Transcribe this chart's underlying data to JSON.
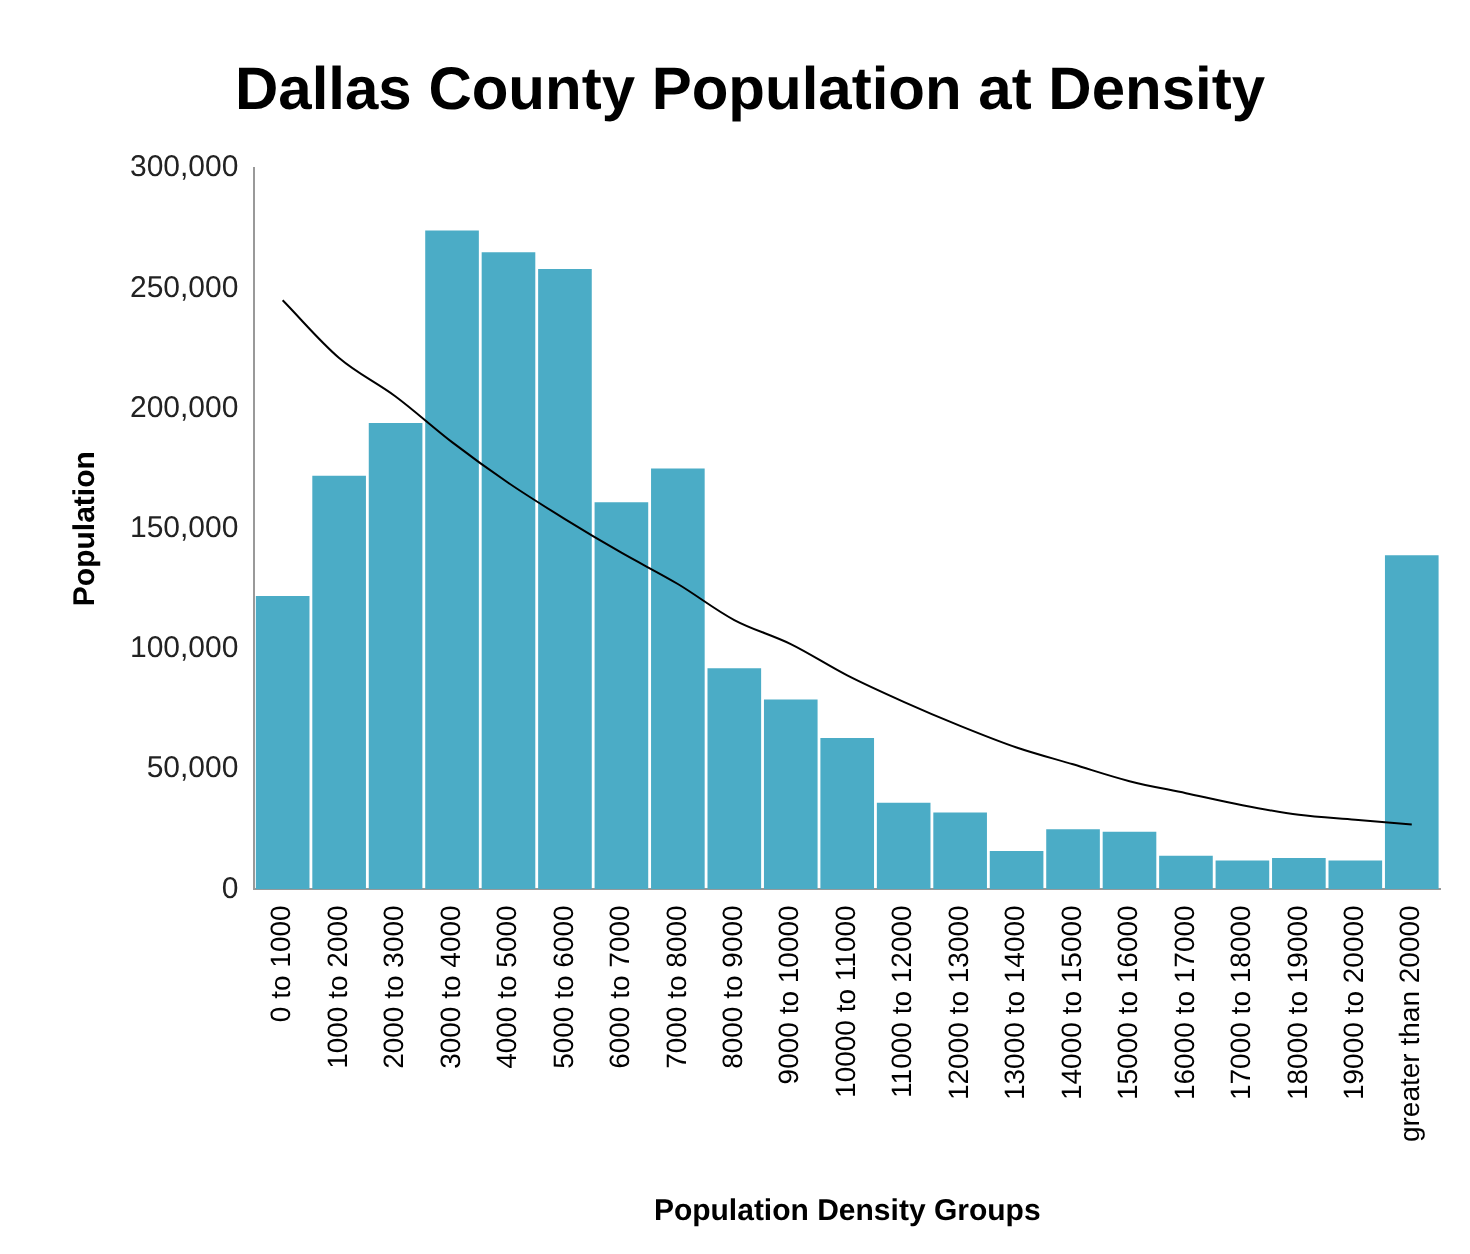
{
  "chart_data": {
    "type": "bar",
    "title": "Dallas County Population at Density",
    "xlabel": "Population Density Groups",
    "ylabel": "Population",
    "categories": [
      "0 to 1000",
      "1000 to 2000",
      "2000 to 3000",
      "3000 to 4000",
      "4000 to 5000",
      "5000 to 6000",
      "6000 to 7000",
      "7000 to 8000",
      "8000 to 9000",
      "9000 to 10000",
      "10000 to 11000",
      "11000 to 12000",
      "12000 to 13000",
      "13000 to 14000",
      "14000 to 15000",
      "15000 to 16000",
      "16000 to 17000",
      "17000 to 18000",
      "18000 to 19000",
      "19000 to 20000",
      "greater than 20000"
    ],
    "series": [
      {
        "color": "#4bacc6",
        "values": [
          122000,
          172000,
          194000,
          274000,
          265000,
          258000,
          161000,
          175000,
          92000,
          79000,
          63000,
          36000,
          32000,
          16000,
          25000,
          24000,
          14000,
          12000,
          13000,
          12000,
          139000
        ]
      },
      {
        "type": "line",
        "color": "#000000",
        "values": [
          245000,
          221000,
          205000,
          186000,
          169000,
          154000,
          140000,
          127000,
          112000,
          102000,
          89000,
          78000,
          68000,
          59000,
          52000,
          45000,
          40000,
          35000,
          31000,
          29000,
          27000
        ]
      }
    ],
    "ylim": [
      0,
      300000
    ],
    "yticks": [
      {
        "value": 0,
        "label": "0"
      },
      {
        "value": 50000,
        "label": "50,000"
      },
      {
        "value": 100000,
        "label": "100,000"
      },
      {
        "value": 150000,
        "label": "150,000"
      },
      {
        "value": 200000,
        "label": "200,000"
      },
      {
        "value": 250000,
        "label": "250,000"
      },
      {
        "value": 300000,
        "label": "300,000"
      }
    ],
    "grid": false,
    "legend": false,
    "marker": "none"
  }
}
